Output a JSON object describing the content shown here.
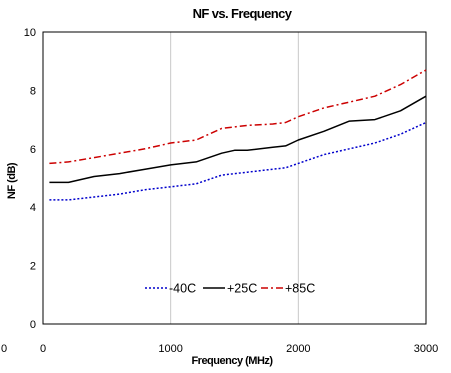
{
  "chart_data": {
    "type": "line",
    "title": "NF vs. Frequency",
    "xlabel": "Frequency (MHz)",
    "ylabel": "NF (dB)",
    "xlim": [
      0,
      3000
    ],
    "ylim": [
      0,
      10
    ],
    "x_ticks": [
      "0",
      "1000",
      "2000",
      "3000"
    ],
    "y_ticks": [
      "0",
      "2",
      "4",
      "6",
      "8",
      "10"
    ],
    "grid": "vertical",
    "legend_position": "bottom-center",
    "series": [
      {
        "name": "-40C",
        "color": "#0000cc",
        "dash": "dotted",
        "x": [
          50,
          200,
          400,
          600,
          800,
          1000,
          1200,
          1400,
          1600,
          1800,
          1900,
          2000,
          2200,
          2400,
          2600,
          2800,
          3000
        ],
        "y": [
          4.25,
          4.25,
          4.35,
          4.45,
          4.6,
          4.7,
          4.8,
          5.1,
          5.2,
          5.3,
          5.35,
          5.5,
          5.8,
          6.0,
          6.2,
          6.5,
          6.9
        ]
      },
      {
        "name": "+25C",
        "color": "#000000",
        "dash": "solid",
        "x": [
          50,
          200,
          400,
          600,
          800,
          1000,
          1200,
          1400,
          1500,
          1600,
          1800,
          1900,
          2000,
          2200,
          2400,
          2600,
          2800,
          3000
        ],
        "y": [
          4.85,
          4.85,
          5.05,
          5.15,
          5.3,
          5.45,
          5.55,
          5.85,
          5.95,
          5.95,
          6.05,
          6.1,
          6.3,
          6.6,
          6.95,
          7.0,
          7.3,
          7.8
        ]
      },
      {
        "name": "+85C",
        "color": "#cc0000",
        "dash": "dashdot",
        "x": [
          50,
          200,
          400,
          600,
          800,
          1000,
          1200,
          1400,
          1600,
          1800,
          1900,
          2000,
          2200,
          2400,
          2600,
          2800,
          3000
        ],
        "y": [
          5.5,
          5.55,
          5.7,
          5.85,
          6.0,
          6.2,
          6.3,
          6.7,
          6.8,
          6.85,
          6.9,
          7.1,
          7.4,
          7.6,
          7.8,
          8.2,
          8.7
        ]
      }
    ],
    "stray_label": "0"
  }
}
